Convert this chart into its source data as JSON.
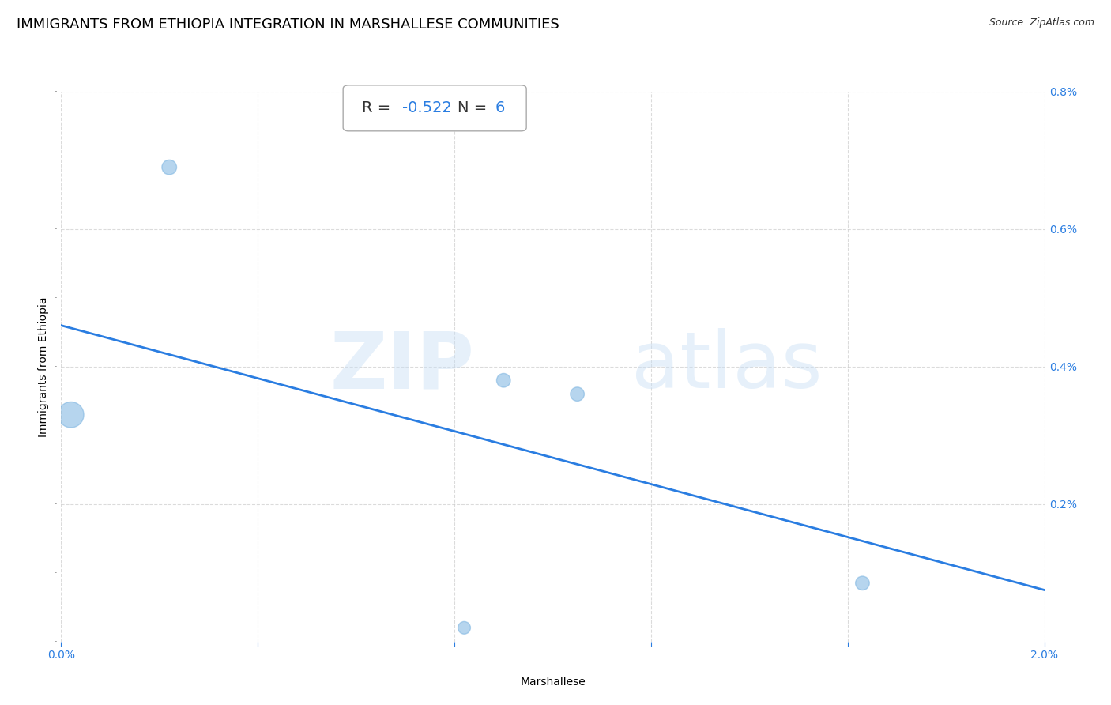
{
  "title": "IMMIGRANTS FROM ETHIOPIA INTEGRATION IN MARSHALLESE COMMUNITIES",
  "source": "Source: ZipAtlas.com",
  "xlabel": "Marshallese",
  "ylabel": "Immigrants from Ethiopia",
  "watermark_zip": "ZIP",
  "watermark_atlas": "atlas",
  "r_value": "-0.522",
  "n_value": "6",
  "xlim": [
    0.0,
    0.02
  ],
  "ylim": [
    0.0,
    0.008
  ],
  "xtick_labels": [
    "0.0%",
    "",
    "",
    "",
    "",
    "2.0%"
  ],
  "xtick_positions": [
    0.0,
    0.004,
    0.008,
    0.012,
    0.016,
    0.02
  ],
  "ytick_labels": [
    "0.2%",
    "0.4%",
    "0.6%",
    "0.8%"
  ],
  "ytick_positions": [
    0.002,
    0.004,
    0.006,
    0.008
  ],
  "scatter_x": [
    0.0002,
    0.0022,
    0.0082,
    0.009,
    0.0105,
    0.0163
  ],
  "scatter_y": [
    0.0033,
    0.0069,
    0.0002,
    0.0038,
    0.0036,
    0.00085
  ],
  "scatter_sizes": [
    550,
    180,
    130,
    160,
    160,
    160
  ],
  "scatter_color": "#7ab3e0",
  "scatter_alpha": 0.55,
  "regression_color": "#2a7de1",
  "regression_x_start": 0.0,
  "regression_x_end": 0.02,
  "regression_y_start": 0.0046,
  "regression_y_end": 0.00075,
  "grid_color": "#cccccc",
  "grid_linestyle": "--",
  "grid_alpha": 0.7,
  "title_fontsize": 13,
  "axis_label_fontsize": 10,
  "tick_label_color": "#2a7de1",
  "annotation_r_color": "#333333",
  "annotation_val_color": "#2a7de1",
  "annotation_fontsize": 14,
  "source_fontsize": 9
}
